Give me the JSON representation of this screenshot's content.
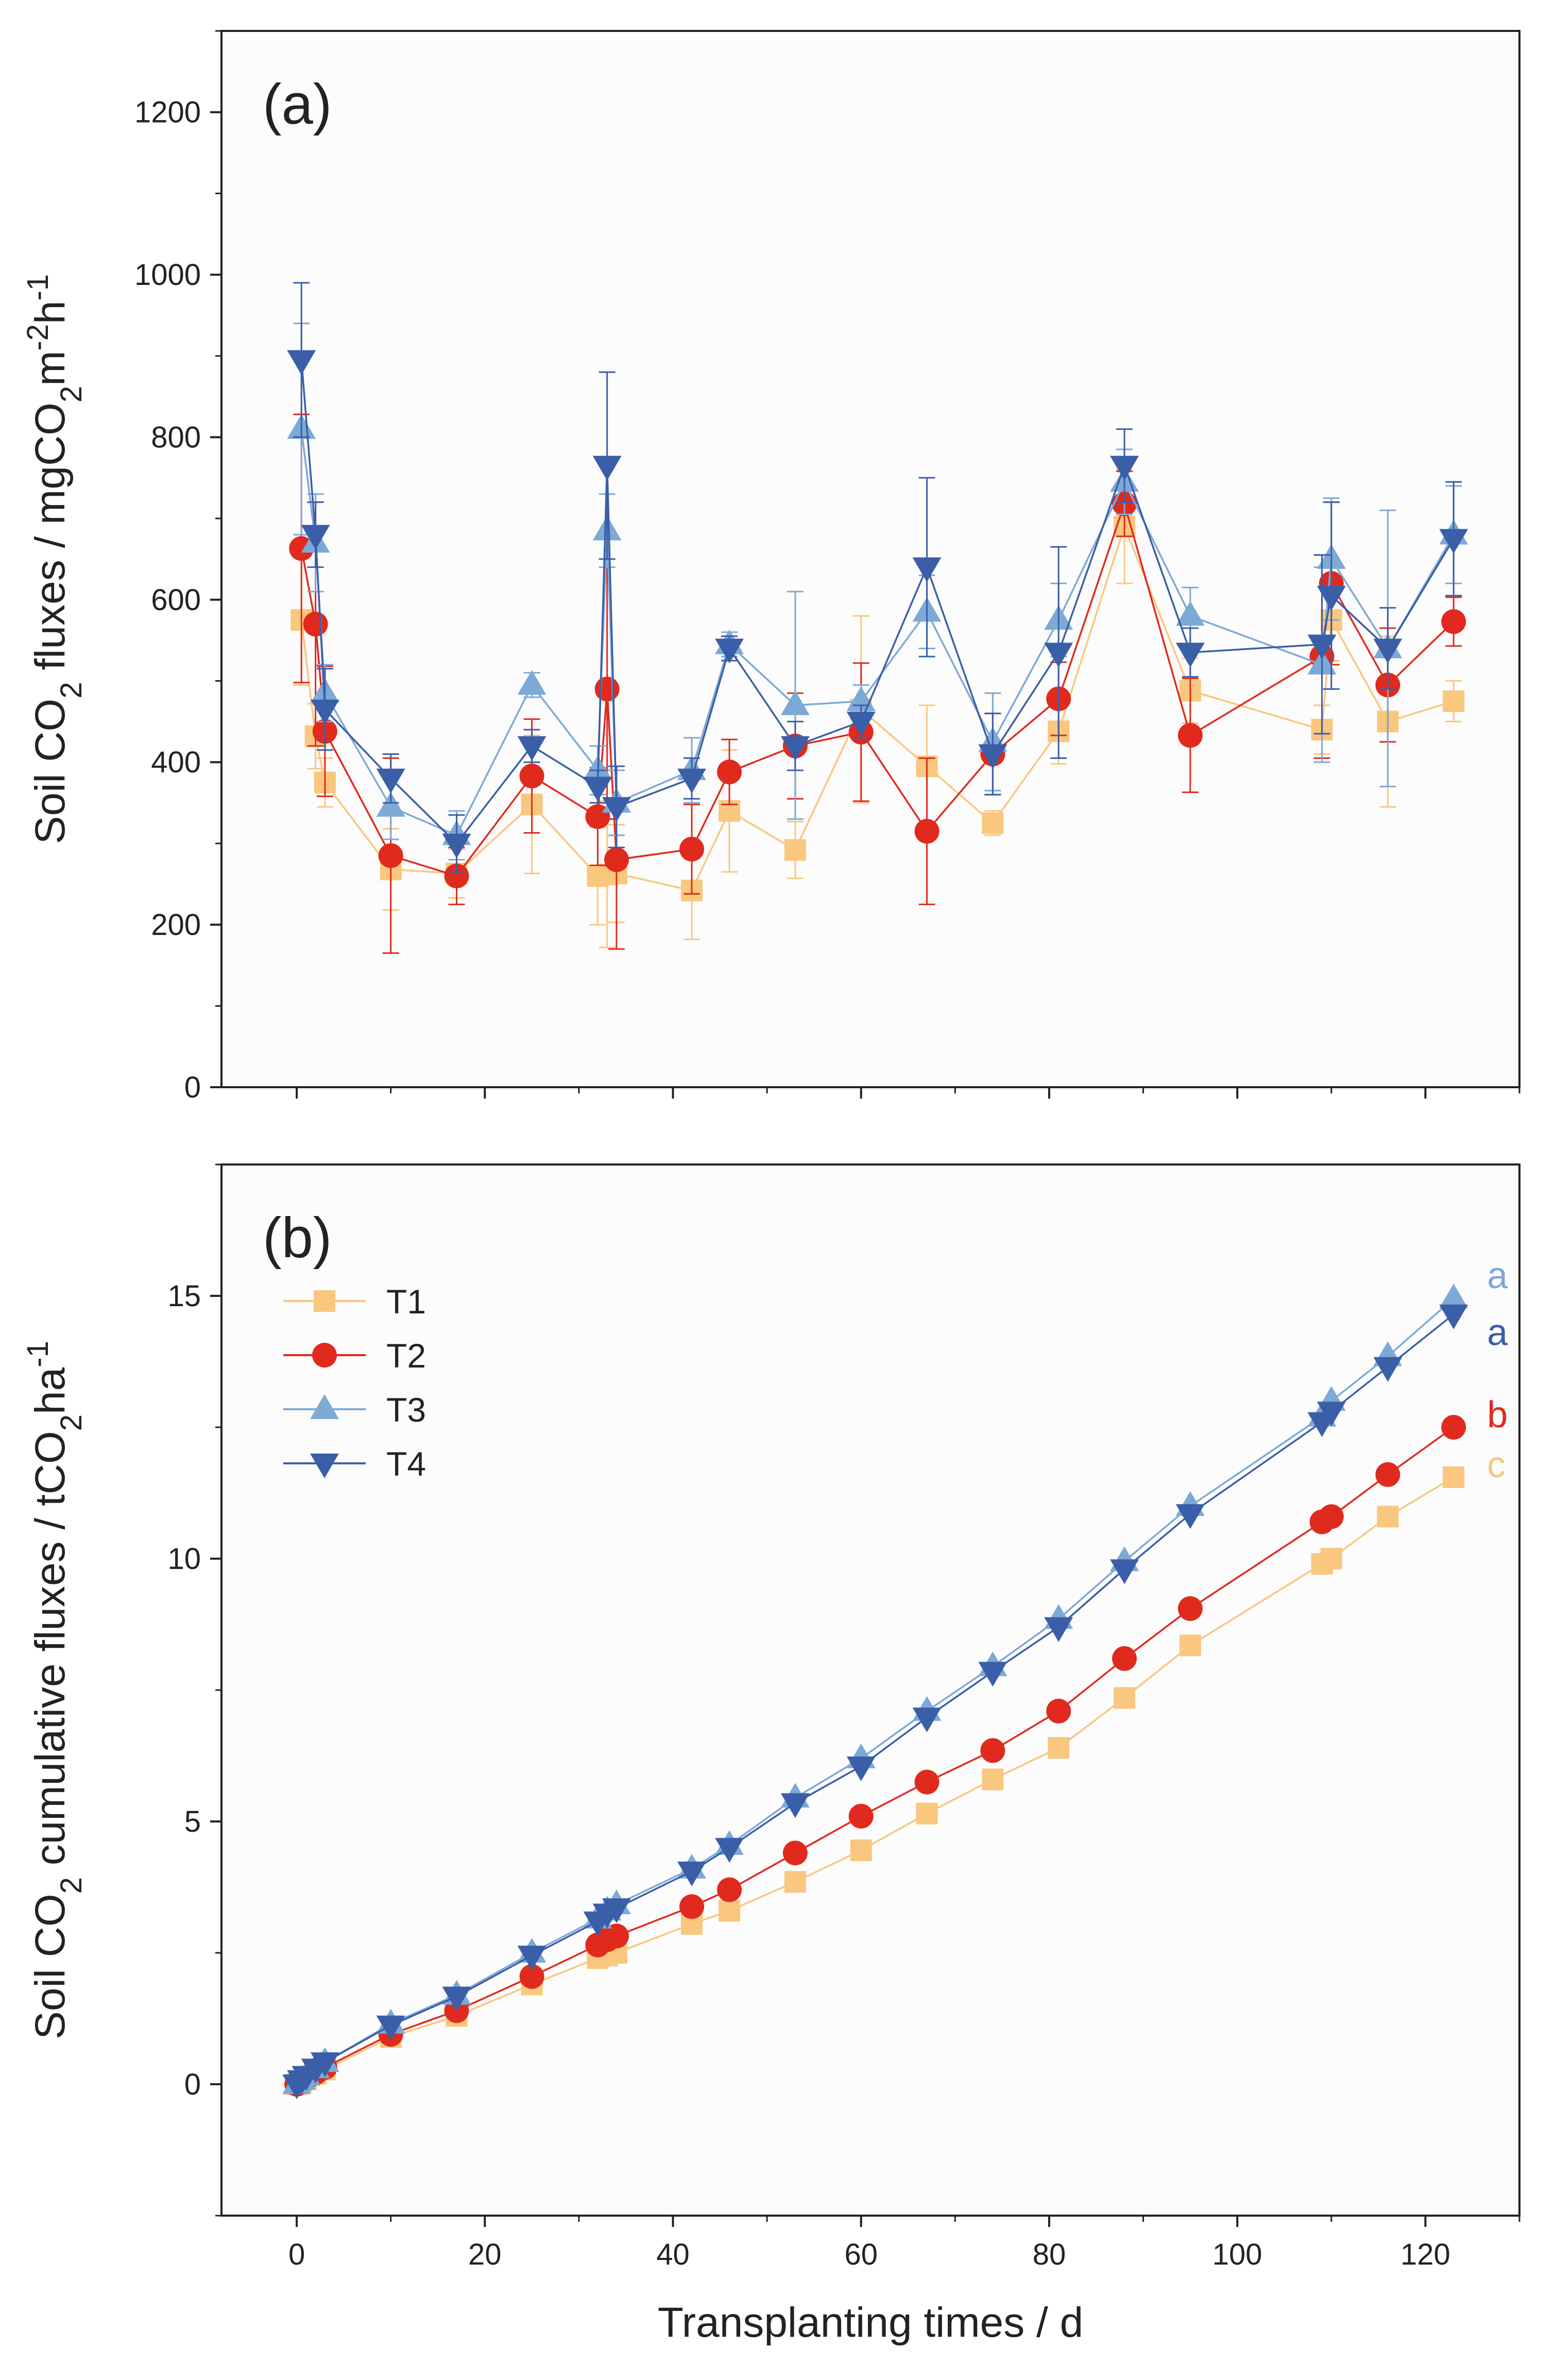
{
  "chart_data": [
    {
      "type": "line",
      "panel_label": "(a)",
      "ylabel_parts": [
        "Soil CO",
        "2",
        " fluxes / mgCO",
        "2",
        "m",
        "-2",
        "h",
        "-1"
      ],
      "ylim": [
        0,
        1300
      ],
      "xlim": [
        -8,
        130
      ],
      "yticks": [
        0,
        200,
        400,
        600,
        800,
        1000,
        1200
      ],
      "series": [
        {
          "name": "T1",
          "color": "#F9C77E",
          "marker": "square",
          "x": [
            0.5,
            2,
            3,
            10,
            17,
            25,
            32,
            33,
            34,
            42,
            46,
            53,
            60,
            67,
            74,
            81,
            88,
            95,
            109,
            110,
            116,
            123
          ],
          "values": [
            575,
            432,
            375,
            268,
            263,
            348,
            260,
            262,
            263,
            242,
            340,
            292,
            465,
            395,
            325,
            438,
            690,
            488,
            440,
            575,
            450,
            475
          ],
          "errors": [
            80,
            40,
            30,
            50,
            30,
            85,
            60,
            90,
            60,
            60,
            75,
            35,
            115,
            75,
            15,
            40,
            70,
            40,
            30,
            50,
            105,
            25
          ]
        },
        {
          "name": "T2",
          "color": "#E02A1E",
          "marker": "circle",
          "x": [
            0.5,
            2,
            3,
            10,
            17,
            25,
            32,
            33,
            34,
            42,
            46,
            53,
            60,
            67,
            74,
            81,
            88,
            95,
            109,
            110,
            116,
            123
          ],
          "values": [
            663,
            570,
            438,
            285,
            260,
            383,
            333,
            490,
            280,
            293,
            388,
            420,
            437,
            315,
            410,
            478,
            718,
            433,
            530,
            620,
            495,
            573
          ],
          "errors": [
            165,
            150,
            80,
            120,
            35,
            70,
            60,
            160,
            110,
            55,
            40,
            65,
            85,
            90,
            50,
            45,
            40,
            70,
            125,
            100,
            70,
            30
          ]
        },
        {
          "name": "T3",
          "color": "#7DA9D6",
          "marker": "triangle-up",
          "x": [
            0.5,
            2,
            3,
            10,
            17,
            25,
            32,
            33,
            34,
            42,
            46,
            53,
            60,
            67,
            74,
            81,
            88,
            95,
            109,
            110,
            116,
            123
          ],
          "values": [
            810,
            670,
            485,
            345,
            310,
            495,
            390,
            685,
            350,
            390,
            545,
            470,
            475,
            585,
            425,
            575,
            745,
            580,
            520,
            650,
            540,
            680
          ],
          "errors": [
            130,
            60,
            35,
            40,
            30,
            15,
            30,
            45,
            40,
            40,
            15,
            140,
            20,
            45,
            60,
            45,
            40,
            35,
            120,
            75,
            170,
            60
          ]
        },
        {
          "name": "T4",
          "color": "#3A5FA8",
          "marker": "triangle-down",
          "x": [
            0.5,
            2,
            3,
            10,
            17,
            25,
            32,
            33,
            34,
            42,
            46,
            53,
            60,
            67,
            74,
            81,
            88,
            95,
            109,
            110,
            116,
            123
          ],
          "values": [
            895,
            680,
            465,
            380,
            300,
            420,
            370,
            765,
            345,
            380,
            540,
            420,
            450,
            640,
            410,
            535,
            765,
            535,
            545,
            605,
            540,
            675
          ],
          "errors": [
            95,
            40,
            50,
            30,
            35,
            20,
            20,
            115,
            50,
            25,
            15,
            30,
            20,
            110,
            50,
            130,
            45,
            30,
            110,
            115,
            50,
            70
          ]
        }
      ]
    },
    {
      "type": "line",
      "panel_label": "(b)",
      "ylabel_parts": [
        "Soil CO",
        "2",
        " cumulative fluxes / tCO",
        "2",
        "ha",
        "-1"
      ],
      "xlabel": "Transplanting times / d",
      "ylim": [
        -2.5,
        17.5
      ],
      "xlim": [
        -8,
        130
      ],
      "yticks": [
        0,
        5,
        10,
        15
      ],
      "xticks": [
        0,
        20,
        40,
        60,
        80,
        100,
        120
      ],
      "legend": {
        "position": "upper-left",
        "entries": [
          "T1",
          "T2",
          "T3",
          "T4"
        ]
      },
      "significance": [
        {
          "series": "T3",
          "letter": "a",
          "color": "#7DA9D6"
        },
        {
          "series": "T4",
          "letter": "a",
          "color": "#3A5FA8"
        },
        {
          "series": "T2",
          "letter": "b",
          "color": "#E02A1E"
        },
        {
          "series": "T1",
          "letter": "c",
          "color": "#F9C77E"
        }
      ],
      "series": [
        {
          "name": "T1",
          "color": "#F9C77E",
          "marker": "square",
          "x": [
            0,
            0.5,
            1,
            2,
            3,
            10,
            17,
            25,
            32,
            33,
            34,
            42,
            46,
            53,
            60,
            67,
            74,
            81,
            88,
            95,
            109,
            110,
            116,
            123
          ],
          "values": [
            0,
            0.05,
            0.1,
            0.2,
            0.28,
            0.9,
            1.3,
            1.9,
            2.4,
            2.45,
            2.5,
            3.05,
            3.3,
            3.85,
            4.45,
            5.15,
            5.8,
            6.4,
            7.35,
            8.35,
            9.9,
            10.0,
            10.8,
            11.55
          ]
        },
        {
          "name": "T2",
          "color": "#E02A1E",
          "marker": "circle",
          "x": [
            0,
            0.5,
            1,
            2,
            3,
            10,
            17,
            25,
            32,
            33,
            34,
            42,
            46,
            53,
            60,
            67,
            74,
            81,
            88,
            95,
            109,
            110,
            116,
            123
          ],
          "values": [
            0,
            0.06,
            0.12,
            0.22,
            0.32,
            0.95,
            1.4,
            2.05,
            2.65,
            2.75,
            2.82,
            3.38,
            3.7,
            4.4,
            5.1,
            5.75,
            6.35,
            7.1,
            8.1,
            9.05,
            10.7,
            10.8,
            11.6,
            12.5
          ]
        },
        {
          "name": "T3",
          "color": "#7DA9D6",
          "marker": "triangle-up",
          "x": [
            0,
            0.5,
            1,
            2,
            3,
            10,
            17,
            25,
            32,
            33,
            34,
            42,
            46,
            53,
            60,
            67,
            74,
            81,
            88,
            95,
            109,
            110,
            116,
            123
          ],
          "values": [
            0,
            0.08,
            0.16,
            0.3,
            0.42,
            1.15,
            1.7,
            2.5,
            3.15,
            3.3,
            3.42,
            4.1,
            4.55,
            5.45,
            6.2,
            7.1,
            7.95,
            8.85,
            9.95,
            11.0,
            12.7,
            13.0,
            13.85,
            14.95
          ]
        },
        {
          "name": "T4",
          "color": "#3A5FA8",
          "marker": "triangle-down",
          "x": [
            0,
            0.5,
            1,
            2,
            3,
            10,
            17,
            25,
            32,
            33,
            34,
            42,
            46,
            53,
            60,
            67,
            74,
            81,
            88,
            95,
            109,
            110,
            116,
            123
          ],
          "values": [
            0,
            0.08,
            0.16,
            0.3,
            0.42,
            1.12,
            1.67,
            2.45,
            3.1,
            3.25,
            3.35,
            4.05,
            4.5,
            5.35,
            6.05,
            6.98,
            7.85,
            8.7,
            9.8,
            10.85,
            12.6,
            12.8,
            13.65,
            14.65
          ]
        }
      ]
    }
  ]
}
